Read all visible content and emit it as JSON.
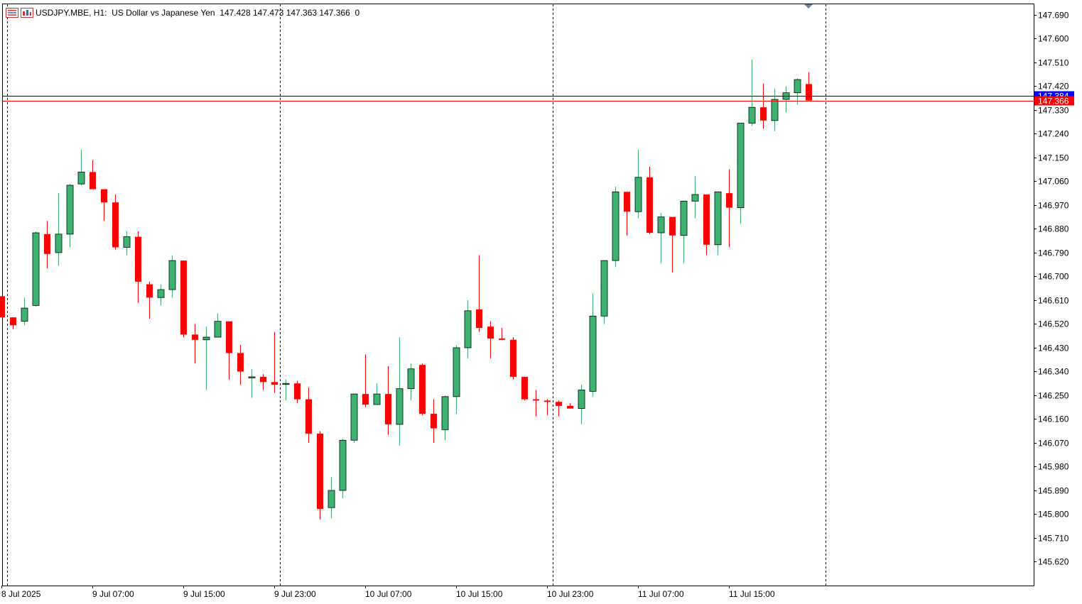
{
  "header": {
    "symbol": "USDJPY.MBE, H1:",
    "description": "US Dollar vs Japanese Yen",
    "ohlc": "147.428 147.473 147.363 147.366",
    "volume": "0",
    "icons": [
      "menu-icon",
      "chart-icon"
    ]
  },
  "colors": {
    "bull": "#3cb371",
    "bear": "#ff0000",
    "ask_line": "#00008b",
    "bid_line": "#ff0000",
    "ask_label_bg": "#0000ff",
    "bid_label_bg": "#ff0000"
  },
  "chart_data": {
    "type": "candlestick",
    "timeframe": "H1",
    "ylim": [
      145.53,
      147.73
    ],
    "y_ticks": [
      "147.690",
      "147.600",
      "147.510",
      "147.420",
      "147.330",
      "147.240",
      "147.150",
      "147.060",
      "146.970",
      "146.880",
      "146.790",
      "146.700",
      "146.610",
      "146.520",
      "146.430",
      "146.340",
      "146.250",
      "146.160",
      "146.070",
      "145.980",
      "145.890",
      "145.800",
      "145.710",
      "145.620"
    ],
    "x_labels": [
      {
        "label": "8 Jul 2025",
        "index": 0
      },
      {
        "label": "9 Jul 07:00",
        "index": 8
      },
      {
        "label": "9 Jul 15:00",
        "index": 16
      },
      {
        "label": "9 Jul 23:00",
        "index": 24
      },
      {
        "label": "10 Jul 07:00",
        "index": 32
      },
      {
        "label": "10 Jul 15:00",
        "index": 40
      },
      {
        "label": "10 Jul 23:00",
        "index": 48
      },
      {
        "label": "11 Jul 07:00",
        "index": 56
      },
      {
        "label": "11 Jul 15:00",
        "index": 64
      }
    ],
    "day_separators": [
      0.5,
      24.5,
      48.5,
      72.5
    ],
    "ask_price": 147.384,
    "ask_label": "147.384",
    "bid_price": 147.366,
    "bid_label": "147.366",
    "candles": [
      [
        146.625,
        146.625,
        146.545,
        146.545
      ],
      [
        146.545,
        146.545,
        146.5,
        146.515
      ],
      [
        146.53,
        146.62,
        146.515,
        146.58
      ],
      [
        146.59,
        146.87,
        146.585,
        146.865
      ],
      [
        146.86,
        146.91,
        146.73,
        146.785
      ],
      [
        146.79,
        147.015,
        146.74,
        146.86
      ],
      [
        146.86,
        147.05,
        146.81,
        147.045
      ],
      [
        147.05,
        147.18,
        147.045,
        147.095
      ],
      [
        147.095,
        147.14,
        147.03,
        147.03
      ],
      [
        147.03,
        147.03,
        146.91,
        146.98
      ],
      [
        146.98,
        147.01,
        146.8,
        146.81
      ],
      [
        146.81,
        146.87,
        146.78,
        146.85
      ],
      [
        146.85,
        146.87,
        146.6,
        146.68
      ],
      [
        146.67,
        146.68,
        146.54,
        146.62
      ],
      [
        146.62,
        146.67,
        146.59,
        146.65
      ],
      [
        146.65,
        146.78,
        146.62,
        146.76
      ],
      [
        146.76,
        146.76,
        146.47,
        146.48
      ],
      [
        146.48,
        146.52,
        146.37,
        146.46
      ],
      [
        146.46,
        146.51,
        146.27,
        146.47
      ],
      [
        146.47,
        146.56,
        146.47,
        146.53
      ],
      [
        146.53,
        146.53,
        146.31,
        146.41
      ],
      [
        146.41,
        146.44,
        146.29,
        146.34
      ],
      [
        146.32,
        146.35,
        146.24,
        146.32
      ],
      [
        146.32,
        146.33,
        146.27,
        146.3
      ],
      [
        146.3,
        146.49,
        146.26,
        146.29
      ],
      [
        146.295,
        146.31,
        146.23,
        146.295
      ],
      [
        146.295,
        146.305,
        146.22,
        146.235
      ],
      [
        146.235,
        146.28,
        146.07,
        146.105
      ],
      [
        146.105,
        146.115,
        145.78,
        145.82
      ],
      [
        145.825,
        145.94,
        145.785,
        145.89
      ],
      [
        145.89,
        146.085,
        145.86,
        146.08
      ],
      [
        146.08,
        146.255,
        146.07,
        146.255
      ],
      [
        146.255,
        146.405,
        146.205,
        146.215
      ],
      [
        146.215,
        146.295,
        146.22,
        146.255
      ],
      [
        146.255,
        146.36,
        146.1,
        146.14
      ],
      [
        146.14,
        146.47,
        146.06,
        146.275
      ],
      [
        146.275,
        146.37,
        146.23,
        146.35
      ],
      [
        146.365,
        146.37,
        146.175,
        146.18
      ],
      [
        146.18,
        146.235,
        146.07,
        146.125
      ],
      [
        146.12,
        146.25,
        146.08,
        146.245
      ],
      [
        146.245,
        146.44,
        146.18,
        146.43
      ],
      [
        146.43,
        146.61,
        146.39,
        146.57
      ],
      [
        146.575,
        146.78,
        146.49,
        146.505
      ],
      [
        146.51,
        146.53,
        146.39,
        146.465
      ],
      [
        146.465,
        146.505,
        146.46,
        146.46
      ],
      [
        146.46,
        146.47,
        146.31,
        146.32
      ],
      [
        146.32,
        146.32,
        146.23,
        146.235
      ],
      [
        146.235,
        146.27,
        146.17,
        146.23
      ],
      [
        146.23,
        146.235,
        146.175,
        146.225
      ],
      [
        146.225,
        146.23,
        146.17,
        146.21
      ],
      [
        146.21,
        146.22,
        146.2,
        146.2
      ],
      [
        146.2,
        146.29,
        146.14,
        146.27
      ],
      [
        146.265,
        146.635,
        146.245,
        146.55
      ],
      [
        146.55,
        146.76,
        146.52,
        146.76
      ],
      [
        146.76,
        147.04,
        146.735,
        147.02
      ],
      [
        147.02,
        147.02,
        146.855,
        146.945
      ],
      [
        146.945,
        147.18,
        146.92,
        147.075
      ],
      [
        147.075,
        147.115,
        146.86,
        146.865
      ],
      [
        146.865,
        146.94,
        146.75,
        146.925
      ],
      [
        146.925,
        146.925,
        146.715,
        146.855
      ],
      [
        146.855,
        146.985,
        146.75,
        146.985
      ],
      [
        146.985,
        147.08,
        146.92,
        147.01
      ],
      [
        147.01,
        147.01,
        146.78,
        146.82
      ],
      [
        146.82,
        147.02,
        146.78,
        147.02
      ],
      [
        147.015,
        147.105,
        146.81,
        146.96
      ],
      [
        146.96,
        147.28,
        146.9,
        147.28
      ],
      [
        147.28,
        147.52,
        147.27,
        147.34
      ],
      [
        147.34,
        147.43,
        147.26,
        147.29
      ],
      [
        147.29,
        147.41,
        147.25,
        147.37
      ],
      [
        147.37,
        147.42,
        147.32,
        147.395
      ],
      [
        147.395,
        147.45,
        147.35,
        147.445
      ],
      [
        147.428,
        147.473,
        147.363,
        147.366
      ]
    ]
  }
}
